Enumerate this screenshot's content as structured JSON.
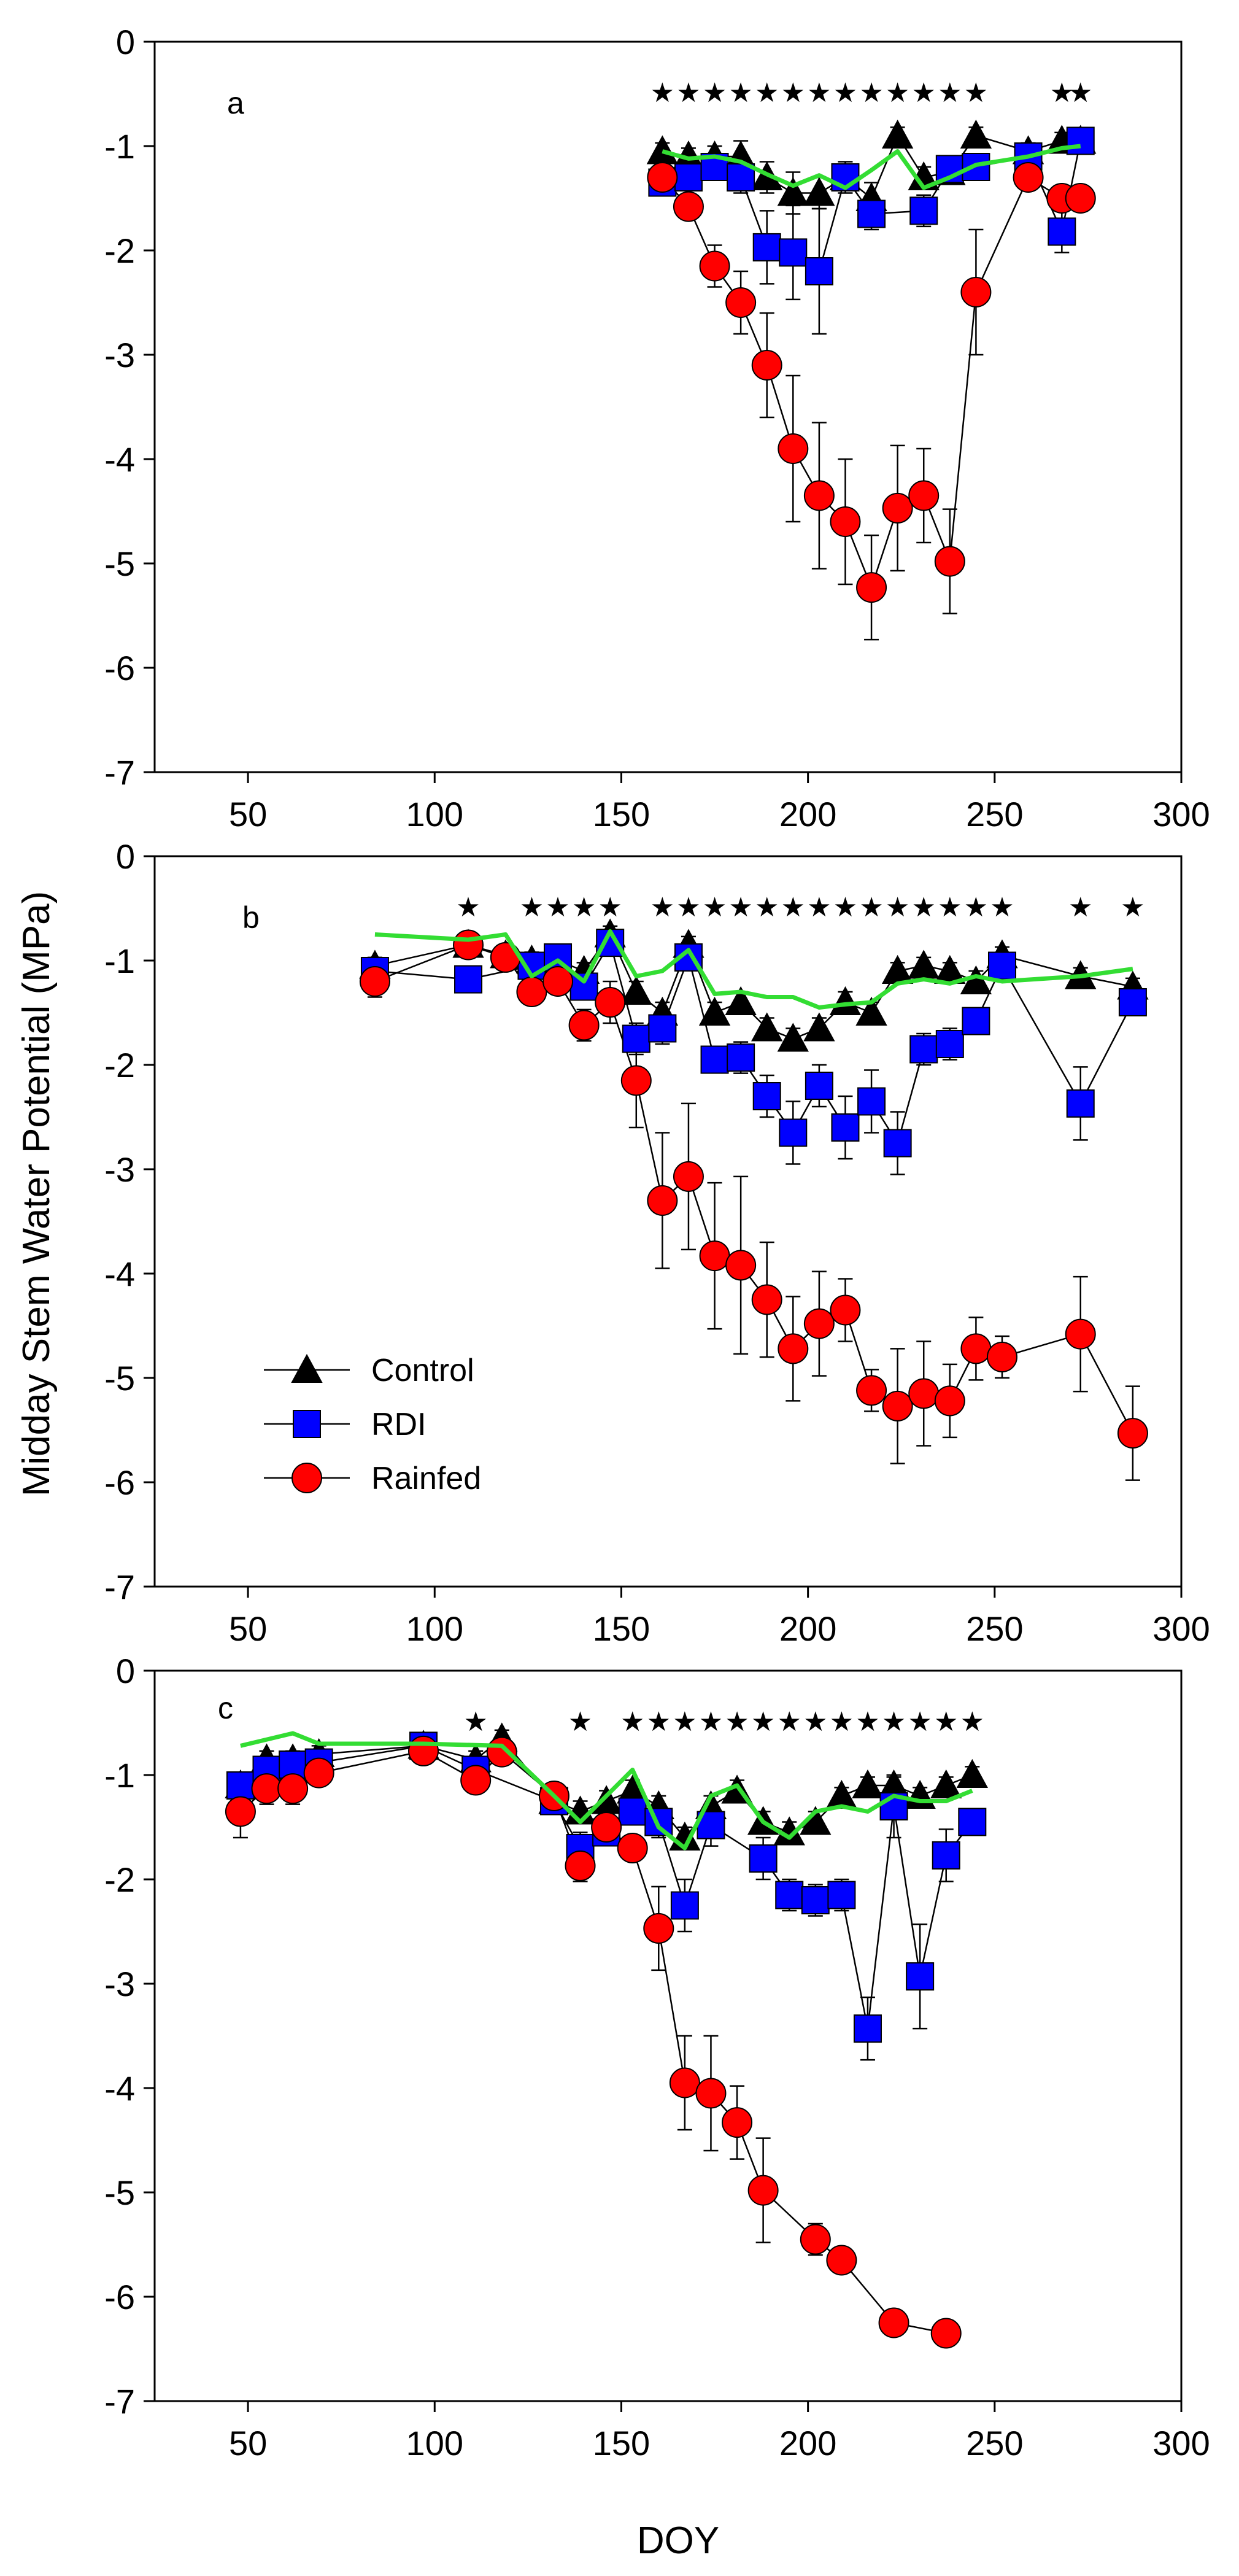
{
  "figure": {
    "ylabel": "Midday Stem Water Potential (MPa)",
    "xlabel": "DOY"
  },
  "legend": [
    {
      "name": "Control",
      "marker": "triangle",
      "color": "#000000"
    },
    {
      "name": "RDI",
      "marker": "square",
      "color": "#0000ff"
    },
    {
      "name": "Rainfed",
      "marker": "circle",
      "color": "#ff0000"
    }
  ],
  "chart_data": [
    {
      "panel": "a",
      "type": "line",
      "xlim": [
        25,
        300
      ],
      "ylim": [
        -7,
        0
      ],
      "xticks": [
        50,
        100,
        150,
        200,
        250,
        300
      ],
      "yticks": [
        0,
        -1,
        -2,
        -3,
        -4,
        -5,
        -6,
        -7
      ],
      "series": [
        {
          "name": "Control",
          "color": "#000000",
          "marker": "triangle",
          "x": [
            161,
            168,
            175,
            182,
            189,
            196,
            203,
            210,
            217,
            224,
            231,
            238,
            245,
            259,
            268,
            273
          ],
          "y": [
            -1.05,
            -1.1,
            -1.1,
            -1.1,
            -1.3,
            -1.45,
            -1.45,
            -1.3,
            -1.5,
            -0.9,
            -1.3,
            -1.25,
            -0.9,
            -1.05,
            -0.95,
            -0.95
          ],
          "err": [
            0.08,
            0.08,
            0.1,
            0.15,
            0.15,
            0.2,
            0.15,
            0.1,
            0.15,
            0.08,
            0.1,
            0.1,
            0.08,
            0.08,
            0.08,
            0.08
          ]
        },
        {
          "name": "RDI",
          "color": "#0000ff",
          "marker": "square",
          "x": [
            161,
            168,
            175,
            182,
            189,
            196,
            203,
            210,
            217,
            231,
            238,
            245,
            259,
            268,
            273
          ],
          "y": [
            -1.35,
            -1.3,
            -1.2,
            -1.3,
            -1.97,
            -2.02,
            -2.2,
            -1.3,
            -1.65,
            -1.62,
            -1.22,
            -1.2,
            -1.1,
            -1.82,
            -0.95
          ],
          "err": [
            0.1,
            0.1,
            0.1,
            0.15,
            0.35,
            0.45,
            0.6,
            0.15,
            0.15,
            0.15,
            0.1,
            0.1,
            0.08,
            0.2,
            0.08
          ]
        },
        {
          "name": "Rainfed",
          "color": "#ff0000",
          "marker": "circle",
          "x": [
            161,
            168,
            175,
            182,
            189,
            196,
            203,
            210,
            217,
            224,
            231,
            238,
            245,
            259,
            268,
            273
          ],
          "y": [
            -1.3,
            -1.58,
            -2.15,
            -2.5,
            -3.1,
            -3.9,
            -4.35,
            -4.6,
            -5.23,
            -4.47,
            -4.35,
            -4.98,
            -2.4,
            -1.3,
            -1.5,
            -1.5
          ],
          "err": [
            0.15,
            0.1,
            0.2,
            0.3,
            0.5,
            0.7,
            0.7,
            0.6,
            0.5,
            0.6,
            0.45,
            0.5,
            0.6,
            0.1,
            0.1,
            0.1
          ]
        }
      ],
      "reference_line": {
        "color": "#33dd33",
        "x": [
          161,
          168,
          175,
          182,
          189,
          196,
          203,
          210,
          217,
          224,
          231,
          238,
          245,
          259,
          268,
          273
        ],
        "y": [
          -1.05,
          -1.12,
          -1.1,
          -1.15,
          -1.27,
          -1.38,
          -1.28,
          -1.4,
          -1.23,
          -1.05,
          -1.4,
          -1.3,
          -1.18,
          -1.1,
          -1.02,
          -1.0
        ]
      },
      "significance_x": [
        161,
        168,
        175,
        182,
        189,
        196,
        203,
        210,
        217,
        224,
        231,
        238,
        245,
        268,
        273
      ],
      "significance_symbol": "★"
    },
    {
      "panel": "b",
      "type": "line",
      "xlim": [
        25,
        300
      ],
      "ylim": [
        -7,
        0
      ],
      "xticks": [
        50,
        100,
        150,
        200,
        250,
        300
      ],
      "yticks": [
        0,
        -1,
        -2,
        -3,
        -4,
        -5,
        -6,
        -7
      ],
      "series": [
        {
          "name": "Control",
          "color": "#000000",
          "marker": "triangle",
          "x": [
            84,
            109,
            119,
            126,
            133,
            140,
            147,
            154,
            161,
            168,
            175,
            182,
            189,
            196,
            203,
            210,
            217,
            224,
            231,
            238,
            245,
            252,
            273,
            287
          ],
          "y": [
            -1.05,
            -0.85,
            -0.95,
            -1.0,
            -1.0,
            -1.1,
            -0.75,
            -1.3,
            -1.5,
            -0.85,
            -1.5,
            -1.4,
            -1.65,
            -1.75,
            -1.65,
            -1.4,
            -1.5,
            -1.1,
            -1.05,
            -1.1,
            -1.2,
            -0.95,
            -1.15,
            -1.25
          ],
          "err": [
            0.08,
            0.08,
            0.08,
            0.08,
            0.08,
            0.08,
            0.08,
            0.1,
            0.1,
            0.08,
            0.1,
            0.1,
            0.1,
            0.1,
            0.1,
            0.1,
            0.1,
            0.08,
            0.08,
            0.08,
            0.1,
            0.08,
            0.08,
            0.08
          ]
        },
        {
          "name": "RDI",
          "color": "#0000ff",
          "marker": "square",
          "x": [
            84,
            109,
            126,
            133,
            140,
            147,
            154,
            161,
            168,
            175,
            182,
            189,
            196,
            203,
            210,
            217,
            224,
            231,
            238,
            245,
            252,
            273,
            287
          ],
          "y": [
            -1.1,
            -1.18,
            -1.05,
            -0.97,
            -1.25,
            -0.83,
            -1.75,
            -1.65,
            -0.97,
            -1.95,
            -1.93,
            -2.3,
            -2.65,
            -2.2,
            -2.6,
            -2.35,
            -2.75,
            -1.85,
            -1.8,
            -1.58,
            -1.05,
            -2.37,
            -1.4
          ],
          "err": [
            0.08,
            0.08,
            0.08,
            0.08,
            0.1,
            0.1,
            0.15,
            0.15,
            0.1,
            0.1,
            0.15,
            0.2,
            0.3,
            0.2,
            0.3,
            0.3,
            0.3,
            0.15,
            0.15,
            0.1,
            0.08,
            0.35,
            0.1
          ]
        },
        {
          "name": "Rainfed",
          "color": "#ff0000",
          "marker": "circle",
          "x": [
            84,
            109,
            119,
            126,
            133,
            140,
            147,
            154,
            161,
            168,
            175,
            182,
            189,
            196,
            203,
            210,
            217,
            224,
            231,
            238,
            245,
            252,
            273,
            287
          ],
          "y": [
            -1.2,
            -0.85,
            -0.97,
            -1.3,
            -1.2,
            -1.62,
            -1.4,
            -2.15,
            -3.3,
            -3.07,
            -3.83,
            -3.92,
            -4.25,
            -4.72,
            -4.48,
            -4.35,
            -5.12,
            -5.27,
            -5.15,
            -5.22,
            -4.72,
            -4.8,
            -4.58,
            -5.53
          ],
          "err": [
            0.15,
            0.1,
            0.1,
            0.1,
            0.1,
            0.15,
            0.2,
            0.45,
            0.65,
            0.7,
            0.7,
            0.85,
            0.55,
            0.5,
            0.5,
            0.3,
            0.2,
            0.55,
            0.5,
            0.35,
            0.3,
            0.2,
            0.55,
            0.45
          ]
        }
      ],
      "reference_line": {
        "color": "#33dd33",
        "x": [
          84,
          109,
          119,
          126,
          133,
          140,
          147,
          154,
          161,
          168,
          175,
          182,
          189,
          196,
          203,
          210,
          217,
          224,
          231,
          238,
          245,
          252,
          273,
          287
        ],
        "y": [
          -0.75,
          -0.8,
          -0.75,
          -1.15,
          -1.0,
          -1.2,
          -0.72,
          -1.15,
          -1.1,
          -0.9,
          -1.32,
          -1.3,
          -1.35,
          -1.35,
          -1.45,
          -1.42,
          -1.4,
          -1.22,
          -1.18,
          -1.22,
          -1.15,
          -1.2,
          -1.15,
          -1.08
        ]
      },
      "significance_x": [
        109,
        126,
        133,
        140,
        147,
        161,
        168,
        175,
        182,
        189,
        196,
        203,
        210,
        217,
        224,
        231,
        238,
        245,
        252,
        273,
        287
      ],
      "significance_symbol": "★"
    },
    {
      "panel": "c",
      "type": "line",
      "xlim": [
        25,
        300
      ],
      "ylim": [
        -7,
        0
      ],
      "xticks": [
        50,
        100,
        150,
        200,
        250,
        300
      ],
      "yticks": [
        0,
        -1,
        -2,
        -3,
        -4,
        -5,
        -6,
        -7
      ],
      "series": [
        {
          "name": "Control",
          "color": "#000000",
          "marker": "triangle",
          "x": [
            48,
            55,
            62,
            69,
            97,
            111,
            118,
            132,
            139,
            146,
            153,
            160,
            167,
            174,
            181,
            188,
            195,
            202,
            209,
            216,
            223,
            230,
            237,
            244
          ],
          "y": [
            -1.1,
            -0.85,
            -0.85,
            -0.8,
            -0.72,
            -0.85,
            -0.65,
            -1.25,
            -1.35,
            -1.25,
            -1.15,
            -1.3,
            -1.6,
            -1.3,
            -1.15,
            -1.45,
            -1.55,
            -1.45,
            -1.2,
            -1.1,
            -1.1,
            -1.2,
            -1.1,
            -1.0
          ],
          "err": [
            0.1,
            0.08,
            0.08,
            0.08,
            0.08,
            0.08,
            0.08,
            0.1,
            0.1,
            0.1,
            0.1,
            0.1,
            0.1,
            0.1,
            0.1,
            0.1,
            0.1,
            0.1,
            0.08,
            0.08,
            0.08,
            0.08,
            0.08,
            0.08
          ]
        },
        {
          "name": "RDI",
          "color": "#0000ff",
          "marker": "square",
          "x": [
            48,
            55,
            62,
            69,
            97,
            111,
            132,
            139,
            146,
            153,
            160,
            167,
            174,
            188,
            195,
            202,
            209,
            216,
            223,
            230,
            237,
            244
          ],
          "y": [
            -1.1,
            -0.95,
            -0.9,
            -0.88,
            -0.72,
            -0.95,
            -1.25,
            -1.7,
            -1.55,
            -1.35,
            -1.45,
            -2.25,
            -1.48,
            -1.8,
            -2.15,
            -2.2,
            -2.15,
            -3.43,
            -1.3,
            -2.93,
            -1.77,
            -1.45
          ],
          "err": [
            0.1,
            0.1,
            0.1,
            0.08,
            0.08,
            0.1,
            0.1,
            0.15,
            0.1,
            0.1,
            0.15,
            0.25,
            0.2,
            0.2,
            0.15,
            0.15,
            0.15,
            0.3,
            0.3,
            0.5,
            0.25,
            0.1
          ]
        },
        {
          "name": "Rainfed",
          "color": "#ff0000",
          "marker": "circle",
          "x": [
            48,
            55,
            62,
            69,
            97,
            111,
            118,
            132,
            139,
            146,
            153,
            160,
            167,
            174,
            181,
            188,
            202,
            209,
            223,
            237
          ],
          "y": [
            -1.35,
            -1.13,
            -1.13,
            -0.98,
            -0.77,
            -1.05,
            -0.78,
            -1.2,
            -1.87,
            -1.5,
            -1.7,
            -2.47,
            -3.95,
            -4.05,
            -4.33,
            -4.98,
            -5.45,
            -5.65,
            -6.25,
            -6.35
          ],
          "err": [
            0.25,
            0.15,
            0.15,
            0.1,
            0.08,
            0.1,
            0.08,
            0.1,
            0.15,
            0.1,
            0.1,
            0.4,
            0.45,
            0.55,
            0.35,
            0.5,
            0.15,
            0.1,
            0.12,
            0.12
          ]
        }
      ],
      "reference_line": {
        "color": "#33dd33",
        "x": [
          48,
          62,
          69,
          97,
          118,
          132,
          139,
          146,
          153,
          160,
          167,
          174,
          181,
          188,
          195,
          202,
          209,
          216,
          223,
          230,
          237,
          244
        ],
        "y": [
          -0.72,
          -0.6,
          -0.7,
          -0.7,
          -0.72,
          -1.2,
          -1.45,
          -1.2,
          -0.95,
          -1.5,
          -1.7,
          -1.2,
          -1.1,
          -1.45,
          -1.6,
          -1.35,
          -1.3,
          -1.35,
          -1.2,
          -1.25,
          -1.25,
          -1.15
        ]
      },
      "significance_x": [
        111,
        139,
        153,
        160,
        167,
        174,
        181,
        188,
        195,
        202,
        209,
        216,
        223,
        230,
        237,
        244
      ],
      "significance_symbol": "★"
    }
  ]
}
